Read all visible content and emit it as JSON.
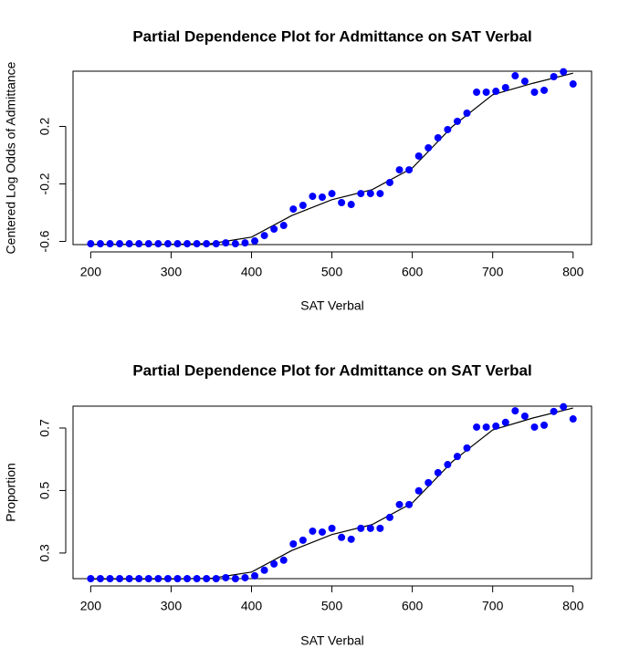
{
  "chart_data": [
    {
      "type": "scatter",
      "title": "Partial Dependence Plot for Admittance on SAT Verbal",
      "xlabel": "SAT Verbal",
      "ylabel": "Centered Log Odds of Admittance",
      "x": [
        200,
        212,
        224,
        236,
        248,
        260,
        272,
        284,
        296,
        308,
        320,
        332,
        344,
        356,
        368,
        380,
        392,
        404,
        416,
        428,
        440,
        452,
        464,
        476,
        488,
        500,
        512,
        524,
        536,
        548,
        560,
        572,
        584,
        596,
        608,
        620,
        632,
        644,
        656,
        668,
        680,
        692,
        704,
        716,
        728,
        740,
        752,
        764,
        776,
        788,
        800
      ],
      "series": [
        {
          "color": "#0000ff",
          "values": [
            -0.616,
            -0.616,
            -0.616,
            -0.616,
            -0.616,
            -0.616,
            -0.616,
            -0.616,
            -0.616,
            -0.616,
            -0.616,
            -0.616,
            -0.616,
            -0.616,
            -0.61,
            -0.616,
            -0.61,
            -0.597,
            -0.559,
            -0.514,
            -0.489,
            -0.375,
            -0.349,
            -0.286,
            -0.292,
            -0.267,
            -0.33,
            -0.343,
            -0.267,
            -0.267,
            -0.267,
            -0.19,
            -0.102,
            -0.102,
            -0.006,
            0.051,
            0.121,
            0.178,
            0.235,
            0.292,
            0.438,
            0.438,
            0.444,
            0.47,
            0.552,
            0.514,
            0.438,
            0.451,
            0.546,
            0.58,
            0.495
          ]
        }
      ],
      "curve": {
        "color": "#000000",
        "x": [
          200,
          250,
          300,
          350,
          400,
          450,
          500,
          550,
          600,
          650,
          700,
          750,
          800
        ],
        "values": [
          -0.62,
          -0.62,
          -0.62,
          -0.615,
          -0.57,
          -0.42,
          -0.31,
          -0.24,
          -0.09,
          0.2,
          0.42,
          0.5,
          0.57
        ]
      },
      "xlim": [
        178,
        823
      ],
      "ylim": [
        -0.622,
        0.584
      ],
      "xticks": [
        200,
        300,
        400,
        500,
        600,
        700,
        800
      ],
      "yticks": [
        -0.6,
        -0.2,
        0.2
      ]
    },
    {
      "type": "scatter",
      "title": "Partial Dependence Plot for Admittance on SAT Verbal",
      "xlabel": "SAT Verbal",
      "ylabel": "Proportion",
      "x": [
        200,
        212,
        224,
        236,
        248,
        260,
        272,
        284,
        296,
        308,
        320,
        332,
        344,
        356,
        368,
        380,
        392,
        404,
        416,
        428,
        440,
        452,
        464,
        476,
        488,
        500,
        512,
        524,
        536,
        548,
        560,
        572,
        584,
        596,
        608,
        620,
        632,
        644,
        656,
        668,
        680,
        692,
        704,
        716,
        728,
        740,
        752,
        764,
        776,
        788,
        800
      ],
      "series": [
        {
          "color": "#0000ff",
          "values": [
            0.218,
            0.218,
            0.218,
            0.218,
            0.218,
            0.218,
            0.218,
            0.218,
            0.218,
            0.218,
            0.218,
            0.218,
            0.218,
            0.218,
            0.221,
            0.218,
            0.221,
            0.227,
            0.245,
            0.265,
            0.277,
            0.329,
            0.341,
            0.37,
            0.367,
            0.379,
            0.35,
            0.344,
            0.379,
            0.379,
            0.379,
            0.414,
            0.455,
            0.455,
            0.499,
            0.525,
            0.557,
            0.583,
            0.609,
            0.636,
            0.703,
            0.703,
            0.706,
            0.718,
            0.755,
            0.738,
            0.703,
            0.709,
            0.753,
            0.768,
            0.729
          ]
        }
      ],
      "curve": {
        "color": "#000000",
        "x": [
          200,
          250,
          300,
          350,
          400,
          450,
          500,
          550,
          600,
          650,
          700,
          750,
          800
        ],
        "values": [
          0.217,
          0.217,
          0.217,
          0.219,
          0.239,
          0.308,
          0.359,
          0.391,
          0.46,
          0.593,
          0.694,
          0.732,
          0.764
        ]
      },
      "xlim": [
        178,
        823
      ],
      "ylim": [
        0.218,
        0.77
      ],
      "xticks": [
        200,
        300,
        400,
        500,
        600,
        700,
        800
      ],
      "yticks": [
        0.3,
        0.5,
        0.7
      ]
    }
  ]
}
